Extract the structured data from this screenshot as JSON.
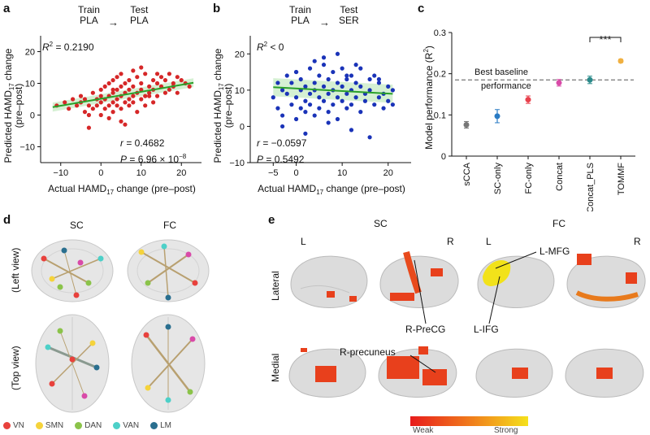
{
  "panel_labels": {
    "a": "a",
    "b": "b",
    "c": "c",
    "d": "d",
    "e": "e"
  },
  "panel_a": {
    "header_left": "Train\nPLA",
    "header_right": "Test\nPLA",
    "arrow": "→",
    "r2_prefix": "R",
    "r2_sup": "2",
    "r2_value": " = 0.2190",
    "r_text": " = 0.4682",
    "p_text": " = 6.96 × 10",
    "p_exp": "−8",
    "xlabel": "Actual HAMD",
    "xlabel_sub": "17",
    "xlabel_tail": " change (pre–post)",
    "ylabel1": "Predicted HAMD",
    "ylabel_sub": "17",
    "ylabel2": " change",
    "ylabel3": "(pre–post)"
  },
  "panel_b": {
    "header_left": "Train\nPLA",
    "header_right": "Test\nSER",
    "arrow": "→",
    "r2_text": " < 0",
    "r_text": " = −0.0597",
    "p_text": " = 0.5492",
    "xlabel": "Actual HAMD",
    "xlabel_sub": "17",
    "xlabel_tail": " change (pre–post)",
    "ylabel1": "Predicted HAMD",
    "ylabel_sub": "17",
    "ylabel2": " change",
    "ylabel3": "(pre–post)"
  },
  "panel_c": {
    "baseline_label1": "Best baseline",
    "baseline_label2": "performance",
    "significance": "***",
    "ylabel": "Model performance (R",
    "ylabel_sup": "2",
    "ylabel_tail": ")"
  },
  "panel_d": {
    "col_sc": "SC",
    "col_fc": "FC",
    "row_left": "(Left view)",
    "row_top": "(Top view)",
    "legend": [
      {
        "label": "VN",
        "color": "#e8413c"
      },
      {
        "label": "SMN",
        "color": "#f5d33b"
      },
      {
        "label": "DAN",
        "color": "#8bc34a"
      },
      {
        "label": "VAN",
        "color": "#4dd0c8"
      },
      {
        "label": "LM",
        "color": "#2a6f8f"
      }
    ]
  },
  "panel_e": {
    "col_sc": "SC",
    "col_fc": "FC",
    "L1": "L",
    "R1": "R",
    "L2": "L",
    "R2": "R",
    "row_lateral": "Lateral",
    "row_medial": "Medial",
    "ann_lmfg": "L-MFG",
    "ann_lifg": "L-IFG",
    "ann_rprecg": "R-PreCG",
    "ann_rprecuneus": "R-precuneus",
    "colorbar_weak": "Weak",
    "colorbar_strong": "Strong"
  },
  "chart_data": [
    {
      "type": "scatter",
      "panel": "a",
      "xlim": [
        -15,
        25
      ],
      "ylim": [
        -15,
        25
      ],
      "xticks": [
        -10,
        0,
        10,
        20
      ],
      "yticks": [
        -10,
        0,
        10,
        20
      ],
      "series": [
        {
          "color": "#d62728",
          "x": [
            -11,
            -9,
            -8,
            -7,
            -6,
            -5,
            -5,
            -4,
            -4,
            -3,
            -3,
            -2,
            -2,
            -1,
            -1,
            0,
            0,
            0,
            1,
            1,
            1,
            2,
            2,
            2,
            3,
            3,
            3,
            3,
            4,
            4,
            4,
            4,
            5,
            5,
            5,
            5,
            6,
            6,
            6,
            7,
            7,
            7,
            7,
            8,
            8,
            8,
            9,
            9,
            9,
            10,
            10,
            10,
            11,
            11,
            11,
            12,
            12,
            13,
            13,
            13,
            14,
            14,
            15,
            15,
            16,
            16,
            17,
            17,
            18,
            18,
            19,
            19,
            20,
            21,
            22,
            -3,
            2,
            6,
            10,
            14,
            3,
            8,
            12,
            0,
            5
          ],
          "y": [
            3,
            4,
            2,
            5,
            3,
            4,
            6,
            1,
            5,
            3,
            -4,
            2,
            7,
            5,
            3,
            4,
            6,
            8,
            2,
            5,
            9,
            3,
            6,
            10,
            4,
            7,
            1,
            11,
            5,
            8,
            3,
            12,
            6,
            9,
            2,
            13,
            4,
            7,
            10,
            5,
            8,
            3,
            11,
            6,
            9,
            4,
            7,
            12,
            1,
            8,
            5,
            10,
            6,
            13,
            3,
            9,
            7,
            11,
            4,
            8,
            10,
            6,
            12,
            9,
            7,
            11,
            13,
            8,
            10,
            9,
            12,
            7,
            11,
            10,
            9,
            0,
            -1,
            -3,
            15,
            13,
            8,
            14,
            6,
            0,
            -2
          ]
        }
      ],
      "fit": {
        "x": [
          -12,
          23
        ],
        "y": [
          2.5,
          10.2
        ]
      }
    },
    {
      "type": "scatter",
      "panel": "b",
      "xlim": [
        -10,
        25
      ],
      "ylim": [
        -10,
        25
      ],
      "xticks": [
        -5,
        0,
        10,
        20
      ],
      "yticks": [
        -10,
        0,
        10,
        20
      ],
      "series": [
        {
          "color": "#1a33b8",
          "x": [
            -5,
            -4,
            -4,
            -3,
            -3,
            -2,
            -2,
            -1,
            -1,
            0,
            0,
            0,
            1,
            1,
            1,
            2,
            2,
            2,
            3,
            3,
            3,
            4,
            4,
            4,
            5,
            5,
            5,
            6,
            6,
            6,
            7,
            7,
            7,
            8,
            8,
            8,
            9,
            9,
            9,
            10,
            10,
            10,
            11,
            11,
            11,
            12,
            12,
            12,
            13,
            13,
            13,
            14,
            14,
            15,
            15,
            16,
            16,
            17,
            17,
            18,
            18,
            19,
            19,
            20,
            20,
            21,
            21,
            -3,
            2,
            7,
            12,
            16,
            4,
            9,
            14,
            0,
            6,
            11,
            18
          ],
          "y": [
            8,
            12,
            5,
            10,
            3,
            14,
            9,
            6,
            12,
            8,
            2,
            15,
            10,
            5,
            13,
            7,
            11,
            4,
            9,
            16,
            6,
            12,
            3,
            10,
            8,
            14,
            5,
            11,
            7,
            19,
            9,
            4,
            13,
            10,
            6,
            15,
            8,
            12,
            2,
            11,
            7,
            16,
            9,
            5,
            13,
            10,
            14,
            6,
            8,
            12,
            17,
            4,
            11,
            9,
            7,
            13,
            10,
            6,
            14,
            8,
            12,
            9,
            5,
            11,
            7,
            10,
            6,
            0,
            -2,
            1,
            -1,
            -3,
            18,
            20,
            16,
            15,
            17,
            14,
            13
          ],
          "r2": "<0"
        }
      ],
      "fit": {
        "x": [
          -5,
          21
        ],
        "y": [
          10.8,
          9.0
        ]
      }
    },
    {
      "type": "scatter",
      "panel": "c",
      "categories": [
        "sCCA",
        "SC-only",
        "FC-only",
        "Concat",
        "Concat_PLS",
        "TOMMF"
      ],
      "values": [
        0.076,
        0.097,
        0.137,
        0.178,
        0.185,
        0.231
      ],
      "errors": [
        0.008,
        0.016,
        0.009,
        0.008,
        0.009,
        0.004
      ],
      "colors": [
        "#777777",
        "#2a7bc4",
        "#e8414c",
        "#d94aa8",
        "#2a8a8a",
        "#f0b040"
      ],
      "ylim": [
        0,
        0.3
      ],
      "yticks": [
        0,
        0.1,
        0.2,
        0.3
      ],
      "baseline": 0.185
    }
  ]
}
